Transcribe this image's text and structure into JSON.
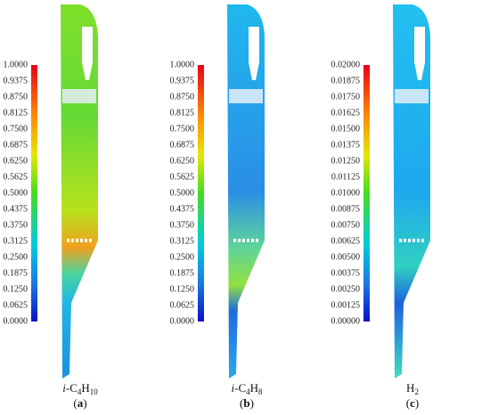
{
  "panels": [
    {
      "ticks": [
        "1.0000",
        "0.9375",
        "0.8750",
        "0.8125",
        "0.7500",
        "0.6875",
        "0.6250",
        "0.5625",
        "0.5000",
        "0.4375",
        "0.3750",
        "0.3125",
        "0.2500",
        "0.1875",
        "0.1250",
        "0.0625",
        "0.0000"
      ],
      "label": [
        "i",
        "-C",
        "4",
        "H",
        "10"
      ],
      "letter": [
        "(",
        "a",
        ")"
      ]
    },
    {
      "ticks": [
        "1.0000",
        "0.9375",
        "0.8750",
        "0.8125",
        "0.7500",
        "0.6875",
        "0.6250",
        "0.5625",
        "0.5000",
        "0.4375",
        "0.3750",
        "0.3125",
        "0.2500",
        "0.1875",
        "0.1250",
        "0.0625",
        "0.0000"
      ],
      "label": [
        "i",
        "-C",
        "4",
        "H",
        "8"
      ],
      "letter": [
        "(",
        "b",
        ")"
      ]
    },
    {
      "ticks": [
        "0.02000",
        "0.01875",
        "0.01750",
        "0.01625",
        "0.01500",
        "0.01375",
        "0.01250",
        "0.01125",
        "0.01000",
        "0.00875",
        "0.00750",
        "0.00625",
        "0.00500",
        "0.00375",
        "0.00250",
        "0.00125",
        "0.00000"
      ],
      "label": [
        "H",
        "2"
      ],
      "letter": [
        "(",
        "c",
        ")"
      ]
    }
  ]
}
